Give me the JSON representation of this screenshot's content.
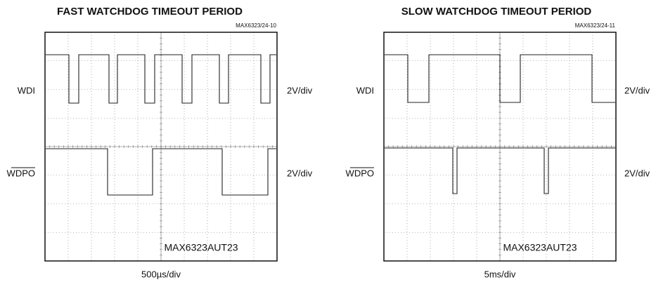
{
  "panels": [
    {
      "title": "FAST WATCHDOG TIMEOUT PERIOD",
      "code": "MAX6323/24-10",
      "channels": [
        {
          "label": "WDI",
          "scale": "2V/div"
        },
        {
          "label": "WDPO",
          "scale": "2V/div"
        }
      ],
      "part": "MAX6323AUT23",
      "timebase": "500µs/div"
    },
    {
      "title": "SLOW WATCHDOG TIMEOUT PERIOD",
      "code": "MAX6323/24-11",
      "channels": [
        {
          "label": "WDI",
          "scale": "2V/div"
        },
        {
          "label": "WDPO",
          "scale": "2V/div"
        }
      ],
      "part": "MAX6323AUT23",
      "timebase": "5ms/div"
    }
  ]
}
